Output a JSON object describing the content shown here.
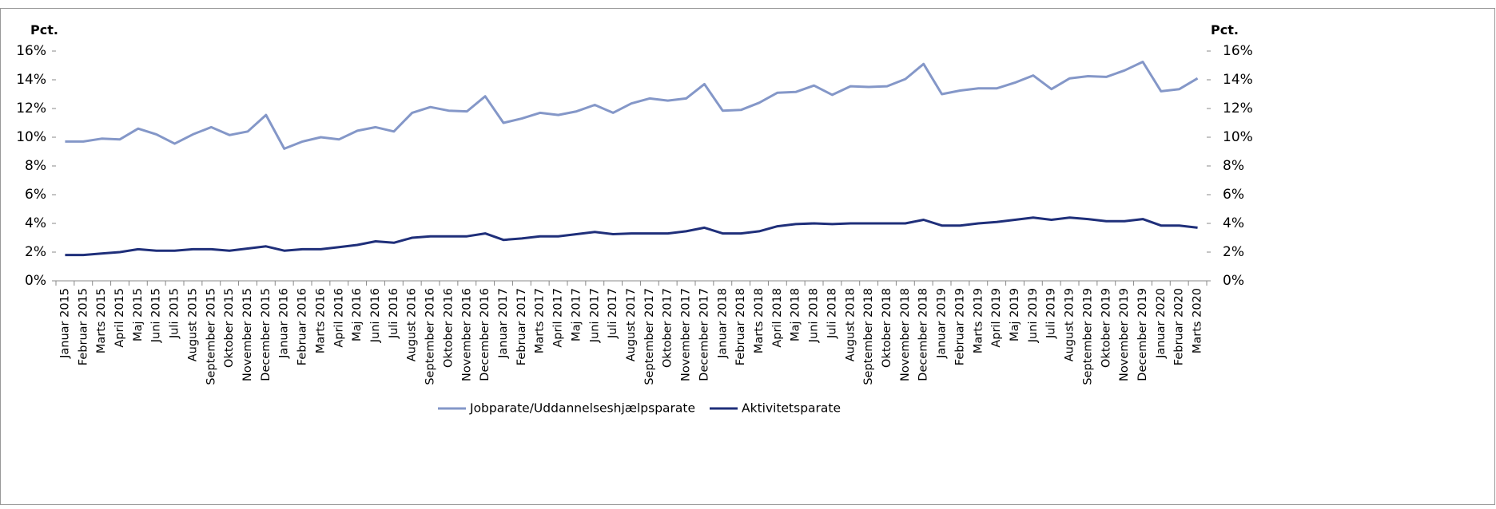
{
  "chart_data": {
    "type": "line",
    "ylabel": "Pct.",
    "y2label": "Pct.",
    "categories": [
      "Januar 2015",
      "Februar 2015",
      "Marts 2015",
      "April 2015",
      "Maj 2015",
      "Juni 2015",
      "Juli 2015",
      "August 2015",
      "September 2015",
      "Oktober 2015",
      "November 2015",
      "December 2015",
      "Januar 2016",
      "Februar 2016",
      "Marts 2016",
      "April 2016",
      "Maj 2016",
      "Juni 2016",
      "Juli 2016",
      "August 2016",
      "September 2016",
      "Oktober 2016",
      "November 2016",
      "December 2016",
      "Januar 2017",
      "Februar 2017",
      "Marts 2017",
      "April 2017",
      "Maj 2017",
      "Juni 2017",
      "Juli 2017",
      "August 2017",
      "September 2017",
      "Oktober 2017",
      "November 2017",
      "December 2017",
      "Januar 2018",
      "Februar 2018",
      "Marts 2018",
      "April 2018",
      "Maj 2018",
      "Juni 2018",
      "Juli 2018",
      "August 2018",
      "September 2018",
      "Oktober 2018",
      "November 2018",
      "December 2018",
      "Januar 2019",
      "Februar 2019",
      "Marts 2019",
      "April 2019",
      "Maj 2019",
      "Juni 2019",
      "Juli 2019",
      "August 2019",
      "September 2019",
      "Oktober 2019",
      "November 2019",
      "December 2019",
      "Januar 2020",
      "Februar 2020",
      "Marts 2020"
    ],
    "series": [
      {
        "name": "Jobparate/Uddannelseshjælpsparate",
        "color": "#8497c8",
        "values": [
          9.7,
          9.7,
          9.9,
          9.85,
          10.6,
          10.2,
          9.55,
          10.2,
          10.7,
          10.15,
          10.4,
          11.55,
          9.2,
          9.7,
          10.0,
          9.85,
          10.45,
          10.7,
          10.4,
          11.7,
          12.1,
          11.85,
          11.8,
          12.85,
          11.0,
          11.3,
          11.7,
          11.55,
          11.8,
          12.25,
          11.7,
          12.35,
          12.7,
          12.55,
          12.7,
          13.7,
          11.85,
          11.9,
          12.4,
          13.1,
          13.15,
          13.6,
          12.95,
          13.55,
          13.5,
          13.55,
          14.05,
          15.1,
          13.0,
          13.25,
          13.4,
          13.4,
          13.8,
          14.3,
          13.35,
          14.1,
          14.25,
          14.2,
          14.65,
          15.25,
          13.2,
          13.35,
          14.1
        ]
      },
      {
        "name": "Aktivitetsparate",
        "color": "#1f2f7a",
        "values": [
          1.8,
          1.8,
          1.9,
          2.0,
          2.2,
          2.1,
          2.1,
          2.2,
          2.2,
          2.1,
          2.25,
          2.4,
          2.1,
          2.2,
          2.2,
          2.35,
          2.5,
          2.75,
          2.65,
          3.0,
          3.1,
          3.1,
          3.1,
          3.3,
          2.85,
          2.95,
          3.1,
          3.1,
          3.25,
          3.4,
          3.25,
          3.3,
          3.3,
          3.3,
          3.45,
          3.7,
          3.3,
          3.3,
          3.45,
          3.8,
          3.95,
          4.0,
          3.95,
          4.0,
          4.0,
          4.0,
          4.0,
          4.25,
          3.85,
          3.85,
          4.0,
          4.1,
          4.25,
          4.4,
          4.25,
          4.4,
          4.3,
          4.15,
          4.15,
          4.3,
          3.85,
          3.85,
          3.7
        ]
      }
    ],
    "ylim": [
      0,
      16
    ],
    "yticks": [
      {
        "value": 0,
        "label": "0%"
      },
      {
        "value": 2,
        "label": "2%"
      },
      {
        "value": 4,
        "label": "4%"
      },
      {
        "value": 6,
        "label": "6%"
      },
      {
        "value": 8,
        "label": "8%"
      },
      {
        "value": 10,
        "label": "10%"
      },
      {
        "value": 12,
        "label": "12%"
      },
      {
        "value": 14,
        "label": "14%"
      },
      {
        "value": 16,
        "label": "16%"
      }
    ],
    "y2lim": [
      0,
      16
    ],
    "y2ticks": [
      {
        "value": 0,
        "label": "0%"
      },
      {
        "value": 2,
        "label": "2%"
      },
      {
        "value": 4,
        "label": "4%"
      },
      {
        "value": 6,
        "label": "6%"
      },
      {
        "value": 8,
        "label": "8%"
      },
      {
        "value": 10,
        "label": "10%"
      },
      {
        "value": 12,
        "label": "12%"
      },
      {
        "value": 14,
        "label": "14%"
      },
      {
        "value": 16,
        "label": "16%"
      }
    ],
    "grid": false
  }
}
